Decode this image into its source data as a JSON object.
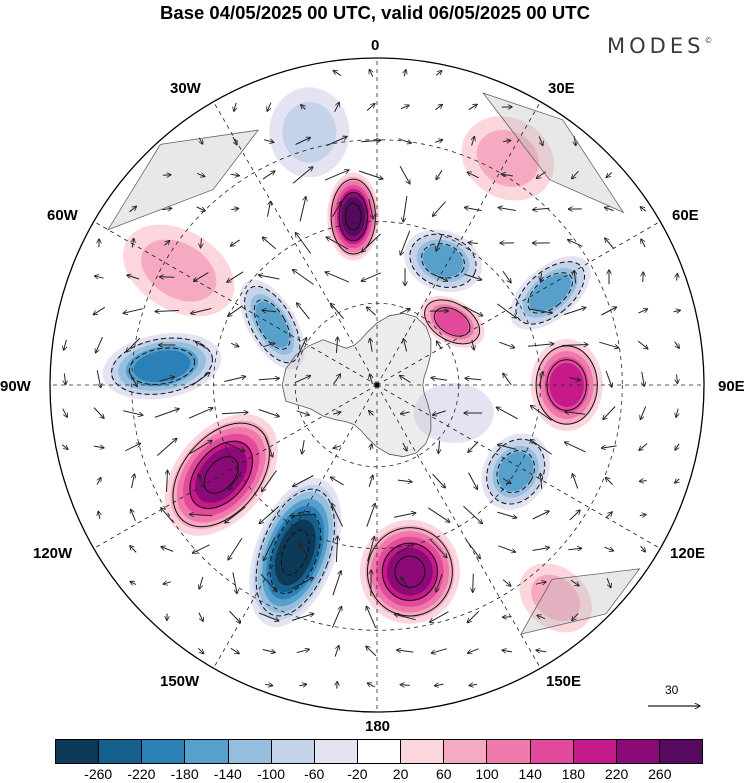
{
  "header": {
    "title": "Base 04/05/2025 00 UTC, valid 06/05/2025 00 UTC",
    "brand": "MODES",
    "brand_mark": "©"
  },
  "map": {
    "projection": "south-polar-stereographic",
    "center_longitude": "0",
    "longitude_labels": {
      "lon_0": "0",
      "lon_30e": "30E",
      "lon_60e": "60E",
      "lon_90e": "90E",
      "lon_120e": "120E",
      "lon_150e": "150E",
      "lon_180": "180",
      "lon_150w": "150W",
      "lon_120w": "120W",
      "lon_90w": "90W",
      "lon_60w": "60W",
      "lon_30w": "30W"
    },
    "reference_vector_label": "30",
    "anomaly_centers": [
      {
        "sign": "positive",
        "near": "0 / 30W",
        "max_class": 260
      },
      {
        "sign": "negative",
        "near": "30E",
        "max_class": -140
      },
      {
        "sign": "negative",
        "near": "60E",
        "max_class": -140
      },
      {
        "sign": "positive",
        "near": "90E",
        "max_class": 180
      },
      {
        "sign": "negative",
        "near": "120E",
        "max_class": -140
      },
      {
        "sign": "positive",
        "near": "180",
        "max_class": 220
      },
      {
        "sign": "negative",
        "near": "150W",
        "max_class": -260
      },
      {
        "sign": "positive",
        "near": "120W",
        "max_class": 220
      },
      {
        "sign": "negative",
        "near": "90W",
        "max_class": -180
      },
      {
        "sign": "negative",
        "near": "60W",
        "max_class": -140
      }
    ]
  },
  "colorbar": {
    "ticks": [
      "-260",
      "-220",
      "-180",
      "-140",
      "-100",
      "-60",
      "-20",
      "20",
      "60",
      "100",
      "140",
      "180",
      "220",
      "260"
    ],
    "colors": [
      "#0e3a5a",
      "#16608e",
      "#2b80b8",
      "#58a0cc",
      "#96bedf",
      "#c4d3ea",
      "#e3e3f2",
      "#ffffff",
      "#fbd6dc",
      "#f6aac1",
      "#ef79ab",
      "#e44a9b",
      "#c71a8a",
      "#8c0a78",
      "#55095f"
    ]
  }
}
